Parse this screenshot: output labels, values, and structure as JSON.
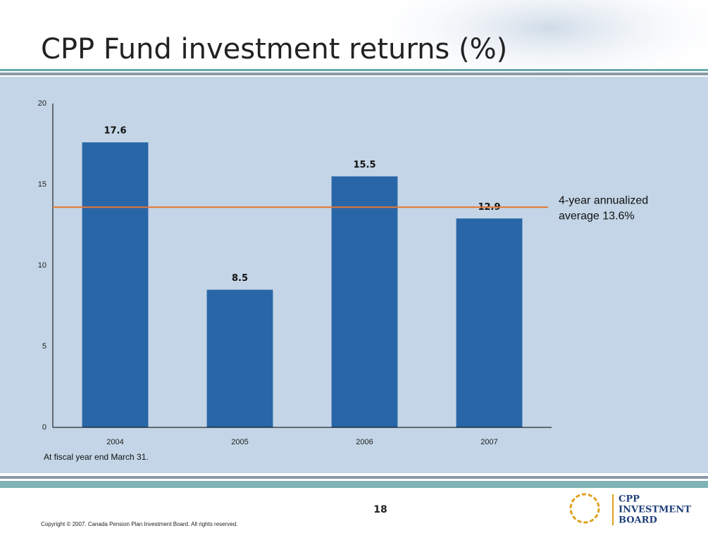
{
  "chart_data": {
    "type": "bar",
    "title": "CPP Fund investment returns (%)",
    "categories": [
      "2004",
      "2005",
      "2006",
      "2007"
    ],
    "values": [
      17.6,
      8.5,
      15.5,
      12.9
    ],
    "color": "#2866a8",
    "ylim": [
      0,
      20
    ],
    "yticks": [
      0,
      5,
      10,
      15,
      20
    ],
    "grid": false,
    "reference_line": {
      "value": 13.6,
      "color": "#e8772e",
      "label": [
        "4-year annualized",
        "average 13.6%"
      ]
    },
    "note": "At fiscal year end March 31."
  },
  "footer": {
    "page_number": "18",
    "copyright": "Copyright © 2007. Canada Pension Plan Investment Board. All rights reserved.",
    "logo": [
      "CPP",
      "INVESTMENT",
      "BOARD"
    ]
  }
}
